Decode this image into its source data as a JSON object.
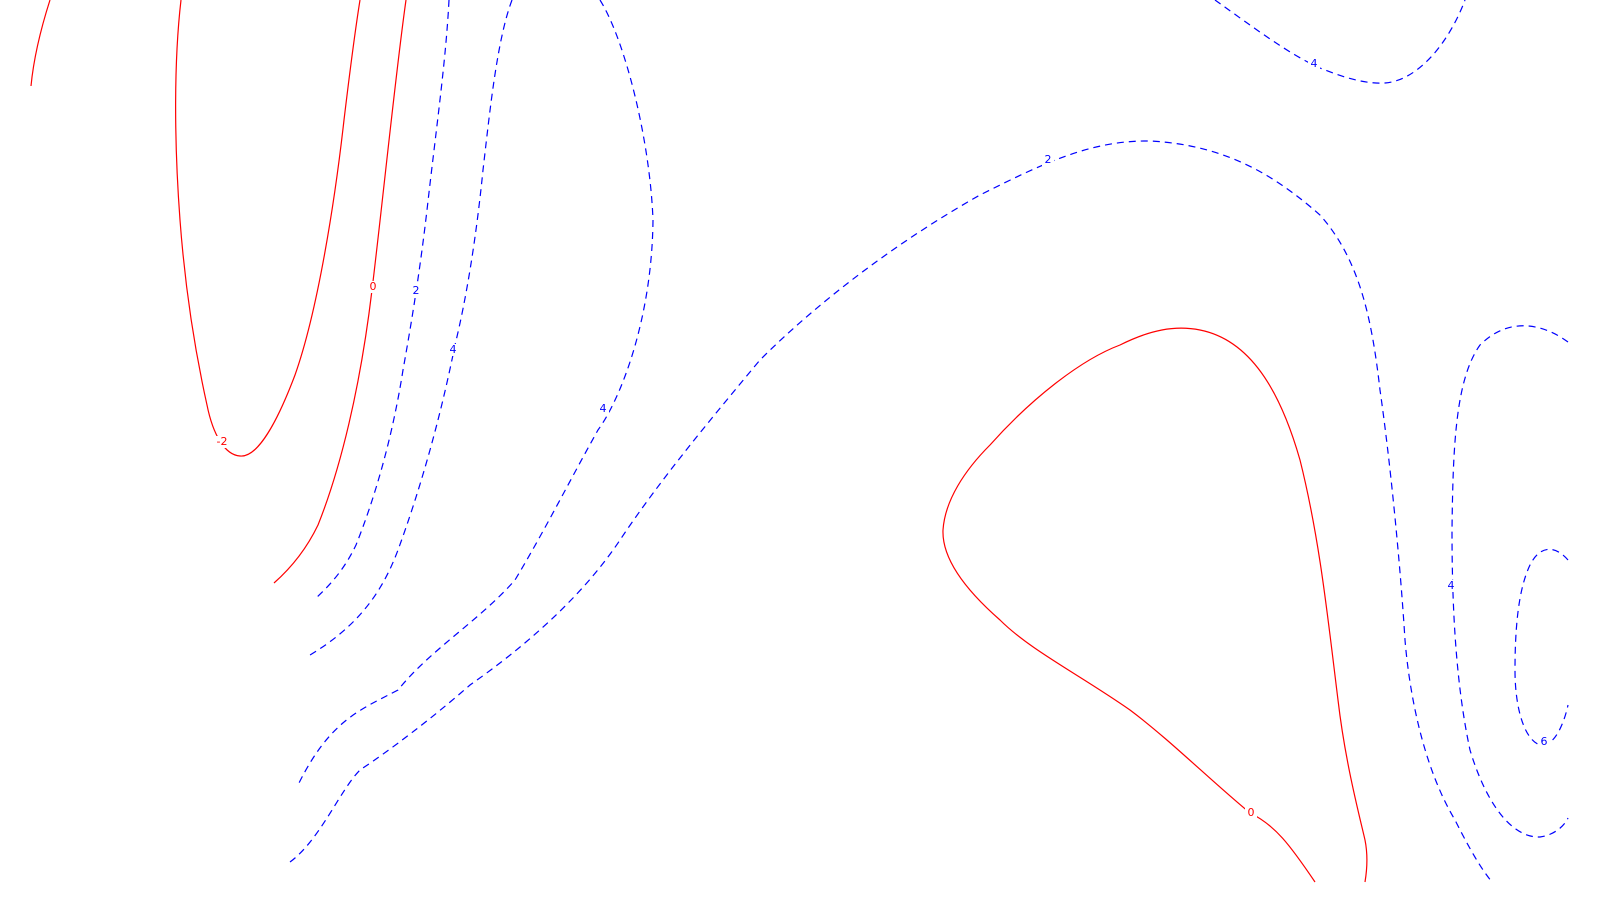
{
  "chart_data": {
    "type": "contour",
    "colors": {
      "non_positive": "#ff0000",
      "positive": "#0000ff",
      "background": "#ffffff"
    },
    "line_styles": {
      "non_positive": "solid",
      "positive": "dashed"
    },
    "series": [
      {
        "level": 0,
        "label": "",
        "color_key": "non_positive"
      },
      {
        "level": -2,
        "label": "-2",
        "color_key": "non_positive"
      },
      {
        "level": 0,
        "label": "0",
        "color_key": "non_positive"
      },
      {
        "level": 2,
        "label": "2",
        "color_key": "positive"
      },
      {
        "level": 4,
        "label": "4",
        "color_key": "positive"
      },
      {
        "level": 4,
        "label": "4",
        "color_key": "positive"
      },
      {
        "level": 2,
        "label": "2",
        "color_key": "positive"
      },
      {
        "level": 4,
        "label": "4",
        "color_key": "positive"
      },
      {
        "level": 0,
        "label": "0",
        "color_key": "non_positive"
      },
      {
        "level": 4,
        "label": "4",
        "color_key": "positive"
      },
      {
        "level": 6,
        "label": "6",
        "color_key": "positive"
      }
    ]
  }
}
